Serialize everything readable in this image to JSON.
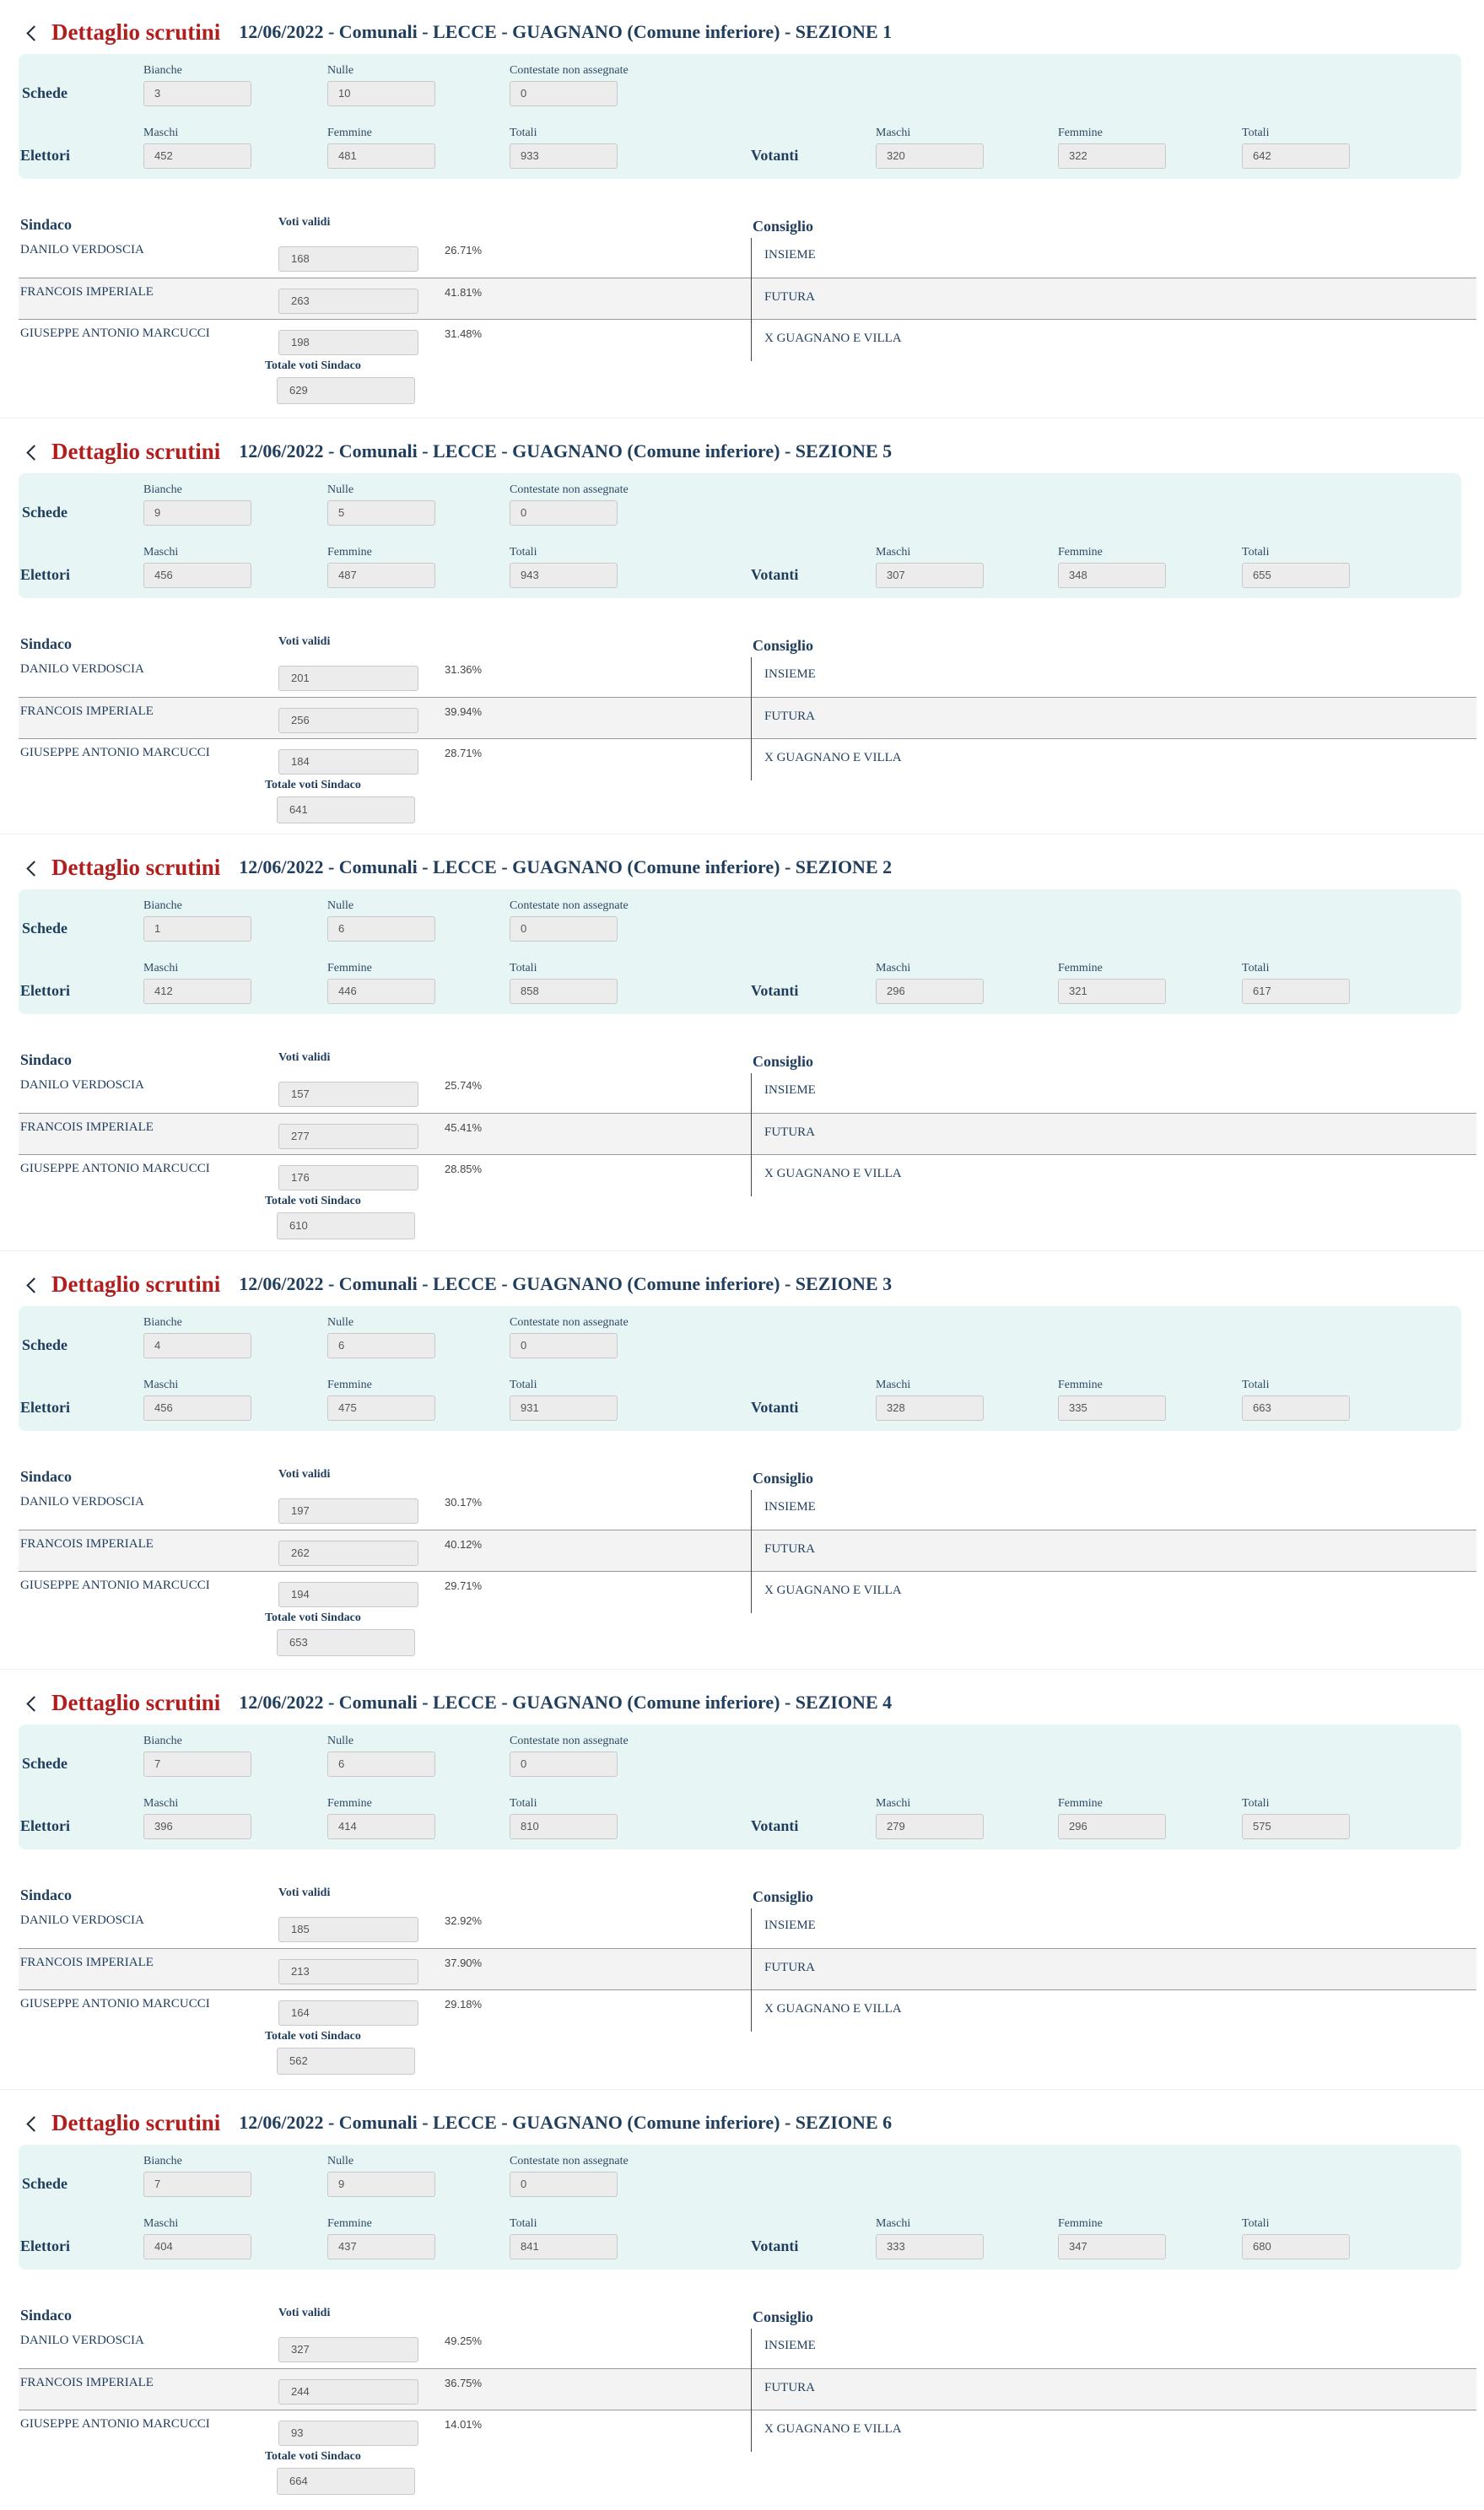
{
  "page": {
    "heading": "Dettaglio scrutini",
    "labels": {
      "schede": "Schede",
      "elettori": "Elettori",
      "votanti": "Votanti",
      "bianche": "Bianche",
      "nulle": "Nulle",
      "contestate": "Contestate non assegnate",
      "maschi": "Maschi",
      "femmine": "Femmine",
      "totali": "Totali",
      "sindaco": "Sindaco",
      "voti_validi": "Voti validi",
      "consiglio": "Consiglio",
      "totale_voti_sindaco": "Totale voti Sindaco"
    },
    "candidates": [
      "DANILO VERDOSCIA",
      "FRANCOIS IMPERIALE",
      "GIUSEPPE ANTONIO MARCUCCI"
    ],
    "lists": [
      "INSIEME",
      "FUTURA",
      "X GUAGNANO E VILLA"
    ]
  },
  "sections": [
    {
      "subtitle": "12/06/2022 - Comunali - LECCE - GUAGNANO (Comune inferiore) - SEZIONE 1",
      "schede": {
        "bianche": "3",
        "nulle": "10",
        "contestate": "0"
      },
      "elettori": {
        "maschi": "452",
        "femmine": "481",
        "totali": "933"
      },
      "votanti": {
        "maschi": "320",
        "femmine": "322",
        "totali": "642"
      },
      "voti": [
        {
          "v": "168",
          "p": "26.71%"
        },
        {
          "v": "263",
          "p": "41.81%"
        },
        {
          "v": "198",
          "p": "31.48%"
        }
      ],
      "totale": "629"
    },
    {
      "subtitle": "12/06/2022 - Comunali - LECCE - GUAGNANO (Comune inferiore) - SEZIONE 5",
      "schede": {
        "bianche": "9",
        "nulle": "5",
        "contestate": "0"
      },
      "elettori": {
        "maschi": "456",
        "femmine": "487",
        "totali": "943"
      },
      "votanti": {
        "maschi": "307",
        "femmine": "348",
        "totali": "655"
      },
      "voti": [
        {
          "v": "201",
          "p": "31.36%"
        },
        {
          "v": "256",
          "p": "39.94%"
        },
        {
          "v": "184",
          "p": "28.71%"
        }
      ],
      "totale": "641"
    },
    {
      "subtitle": "12/06/2022 - Comunali - LECCE - GUAGNANO (Comune inferiore) - SEZIONE 2",
      "schede": {
        "bianche": "1",
        "nulle": "6",
        "contestate": "0"
      },
      "elettori": {
        "maschi": "412",
        "femmine": "446",
        "totali": "858"
      },
      "votanti": {
        "maschi": "296",
        "femmine": "321",
        "totali": "617"
      },
      "voti": [
        {
          "v": "157",
          "p": "25.74%"
        },
        {
          "v": "277",
          "p": "45.41%"
        },
        {
          "v": "176",
          "p": "28.85%"
        }
      ],
      "totale": "610"
    },
    {
      "subtitle": "12/06/2022 - Comunali - LECCE - GUAGNANO (Comune inferiore) - SEZIONE 3",
      "schede": {
        "bianche": "4",
        "nulle": "6",
        "contestate": "0"
      },
      "elettori": {
        "maschi": "456",
        "femmine": "475",
        "totali": "931"
      },
      "votanti": {
        "maschi": "328",
        "femmine": "335",
        "totali": "663"
      },
      "voti": [
        {
          "v": "197",
          "p": "30.17%"
        },
        {
          "v": "262",
          "p": "40.12%"
        },
        {
          "v": "194",
          "p": "29.71%"
        }
      ],
      "totale": "653"
    },
    {
      "subtitle": "12/06/2022 - Comunali - LECCE - GUAGNANO (Comune inferiore) - SEZIONE 4",
      "schede": {
        "bianche": "7",
        "nulle": "6",
        "contestate": "0"
      },
      "elettori": {
        "maschi": "396",
        "femmine": "414",
        "totali": "810"
      },
      "votanti": {
        "maschi": "279",
        "femmine": "296",
        "totali": "575"
      },
      "voti": [
        {
          "v": "185",
          "p": "32.92%"
        },
        {
          "v": "213",
          "p": "37.90%"
        },
        {
          "v": "164",
          "p": "29.18%"
        }
      ],
      "totale": "562"
    },
    {
      "subtitle": "12/06/2022 - Comunali - LECCE - GUAGNANO (Comune inferiore) - SEZIONE 6",
      "schede": {
        "bianche": "7",
        "nulle": "9",
        "contestate": "0"
      },
      "elettori": {
        "maschi": "404",
        "femmine": "437",
        "totali": "841"
      },
      "votanti": {
        "maschi": "333",
        "femmine": "347",
        "totali": "680"
      },
      "voti": [
        {
          "v": "327",
          "p": "49.25%"
        },
        {
          "v": "244",
          "p": "36.75%"
        },
        {
          "v": "93",
          "p": "14.01%"
        }
      ],
      "totale": "664"
    }
  ]
}
